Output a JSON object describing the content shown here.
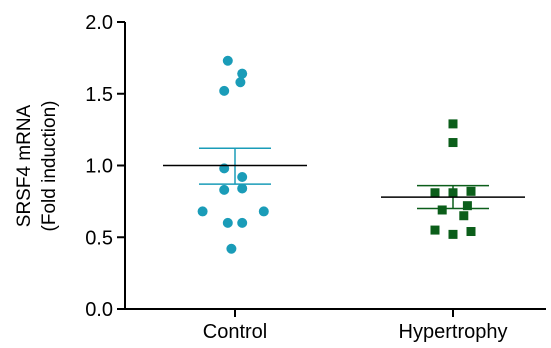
{
  "chart_data": {
    "type": "scatter",
    "title": "",
    "xlabel": "",
    "ylabel": [
      "SRSF4 mRNA",
      "(Fold induction)"
    ],
    "ylim": [
      0.0,
      2.0
    ],
    "yticks": [
      0.0,
      0.5,
      1.0,
      1.5,
      2.0
    ],
    "ytick_labels": [
      "0.0",
      "0.5",
      "1.0",
      "1.5",
      "2.0"
    ],
    "categories": [
      "Control",
      "Hypertrophy"
    ],
    "grid": false,
    "legend": "none",
    "series": [
      {
        "category": "Control",
        "marker": "circle",
        "color": "#1a9cb8",
        "points": [
          {
            "offset": -0.02,
            "y": 1.73
          },
          {
            "offset": 0.02,
            "y": 1.64
          },
          {
            "offset": 0.015,
            "y": 1.58
          },
          {
            "offset": -0.03,
            "y": 1.52
          },
          {
            "offset": -0.03,
            "y": 0.98
          },
          {
            "offset": 0.02,
            "y": 0.92
          },
          {
            "offset": -0.03,
            "y": 0.83
          },
          {
            "offset": 0.02,
            "y": 0.84
          },
          {
            "offset": -0.09,
            "y": 0.68
          },
          {
            "offset": 0.08,
            "y": 0.68
          },
          {
            "offset": -0.02,
            "y": 0.6
          },
          {
            "offset": 0.02,
            "y": 0.6
          },
          {
            "offset": -0.01,
            "y": 0.42
          }
        ],
        "mean": 1.0,
        "sem_upper": 1.12,
        "sem_lower": 0.87,
        "mean_color": "#000000",
        "error_color": "#1a9cb8"
      },
      {
        "category": "Hypertrophy",
        "marker": "square",
        "color": "#0b5e1a",
        "points": [
          {
            "offset": 0.0,
            "y": 1.29
          },
          {
            "offset": 0.0,
            "y": 1.16
          },
          {
            "offset": -0.05,
            "y": 0.81
          },
          {
            "offset": 0.0,
            "y": 0.81
          },
          {
            "offset": 0.05,
            "y": 0.82
          },
          {
            "offset": -0.03,
            "y": 0.69
          },
          {
            "offset": 0.03,
            "y": 0.65
          },
          {
            "offset": 0.04,
            "y": 0.72
          },
          {
            "offset": -0.05,
            "y": 0.55
          },
          {
            "offset": 0.0,
            "y": 0.52
          },
          {
            "offset": 0.05,
            "y": 0.54
          }
        ],
        "mean": 0.78,
        "sem_upper": 0.86,
        "sem_lower": 0.7,
        "mean_color": "#000000",
        "error_color": "#0b5e1a"
      }
    ]
  }
}
